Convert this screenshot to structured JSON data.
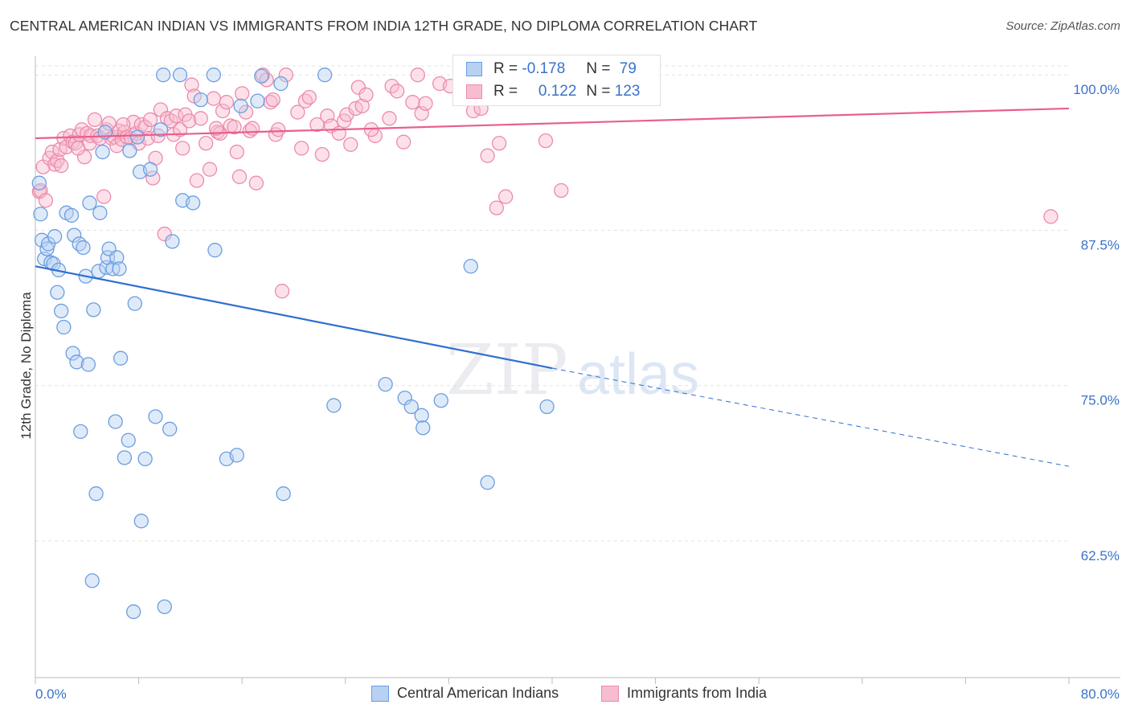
{
  "title": "CENTRAL AMERICAN INDIAN VS IMMIGRANTS FROM INDIA 12TH GRADE, NO DIPLOMA CORRELATION CHART",
  "source": "Source: ZipAtlas.com",
  "watermark": {
    "zip": "ZIP",
    "atlas": "atlas"
  },
  "legend": {
    "rows": [
      {
        "r_label": "R =",
        "r_value": "-0.178",
        "n_label": "N =",
        "n_value": "79"
      },
      {
        "r_label": "R =",
        "r_value": "0.122",
        "n_label": "N =",
        "n_value": "123"
      }
    ]
  },
  "colors": {
    "blue_fill": "#b8d0f2",
    "blue_stroke": "#6b9ee0",
    "blue_line": "#2f6fd0",
    "pink_fill": "#f8bcd0",
    "pink_stroke": "#ec8bab",
    "pink_line": "#e8608a",
    "axis_label": "#3a72c9",
    "grid": "#e3e3e3"
  },
  "chart_data": {
    "type": "scatter",
    "title": "CENTRAL AMERICAN INDIAN VS IMMIGRANTS FROM INDIA 12TH GRADE, NO DIPLOMA CORRELATION CHART",
    "xlabel": "",
    "ylabel": "12th Grade, No Diploma",
    "xlim": [
      0,
      80
    ],
    "ylim": [
      51.5,
      101.5
    ],
    "x_tick_labels": [
      "0.0%",
      "80.0%"
    ],
    "y_ticks": [
      62.5,
      75.0,
      87.5,
      100.0
    ],
    "y_tick_labels": [
      "62.5%",
      "75.0%",
      "87.5%",
      "100.0%"
    ],
    "grid": true,
    "legend_position": "bottom-center",
    "series": [
      {
        "name": "Central American Indians",
        "r": -0.178,
        "n": 79,
        "trend": {
          "x0": 0,
          "y0": 84.6,
          "x1": 40,
          "y1": 76.4,
          "dash_x1": 80,
          "dash_y1": 68.5
        },
        "points": [
          [
            0.3,
            91.3
          ],
          [
            0.4,
            88.8
          ],
          [
            0.5,
            86.7
          ],
          [
            0.7,
            85.2
          ],
          [
            0.9,
            86.0
          ],
          [
            1.0,
            86.4
          ],
          [
            1.2,
            84.9
          ],
          [
            1.4,
            84.8
          ],
          [
            1.5,
            87.0
          ],
          [
            1.7,
            82.5
          ],
          [
            1.8,
            84.3
          ],
          [
            2.0,
            81.0
          ],
          [
            2.2,
            79.7
          ],
          [
            2.4,
            88.9
          ],
          [
            2.8,
            88.7
          ],
          [
            2.9,
            77.6
          ],
          [
            3.0,
            87.1
          ],
          [
            3.2,
            76.9
          ],
          [
            3.4,
            86.4
          ],
          [
            3.5,
            71.3
          ],
          [
            3.7,
            86.1
          ],
          [
            3.9,
            83.8
          ],
          [
            4.1,
            76.7
          ],
          [
            4.2,
            89.7
          ],
          [
            4.5,
            81.1
          ],
          [
            4.7,
            66.3
          ],
          [
            4.9,
            84.2
          ],
          [
            5.0,
            88.9
          ],
          [
            5.2,
            93.8
          ],
          [
            5.4,
            95.4
          ],
          [
            5.5,
            84.5
          ],
          [
            5.6,
            85.3
          ],
          [
            5.7,
            86.0
          ],
          [
            6.0,
            84.4
          ],
          [
            6.2,
            72.1
          ],
          [
            6.3,
            85.3
          ],
          [
            6.5,
            84.4
          ],
          [
            6.6,
            77.2
          ],
          [
            6.9,
            69.2
          ],
          [
            7.2,
            70.6
          ],
          [
            7.3,
            93.9
          ],
          [
            7.7,
            81.6
          ],
          [
            7.9,
            95.0
          ],
          [
            8.1,
            92.2
          ],
          [
            8.2,
            64.1
          ],
          [
            8.5,
            69.1
          ],
          [
            8.9,
            92.4
          ],
          [
            9.3,
            72.5
          ],
          [
            9.7,
            95.6
          ],
          [
            9.9,
            100.0
          ],
          [
            10.0,
            57.2
          ],
          [
            10.4,
            71.5
          ],
          [
            10.6,
            86.6
          ],
          [
            11.2,
            100.0
          ],
          [
            11.4,
            89.9
          ],
          [
            12.2,
            89.7
          ],
          [
            12.8,
            98.0
          ],
          [
            13.8,
            100.0
          ],
          [
            13.9,
            85.9
          ],
          [
            14.8,
            69.1
          ],
          [
            15.6,
            69.4
          ],
          [
            15.9,
            97.5
          ],
          [
            17.2,
            97.9
          ],
          [
            17.5,
            99.9
          ],
          [
            19.0,
            99.3
          ],
          [
            19.2,
            66.3
          ],
          [
            22.4,
            100.0
          ],
          [
            23.1,
            73.4
          ],
          [
            27.1,
            75.1
          ],
          [
            28.6,
            74.0
          ],
          [
            29.1,
            73.3
          ],
          [
            29.9,
            72.6
          ],
          [
            30.0,
            71.6
          ],
          [
            31.4,
            73.8
          ],
          [
            33.7,
            84.6
          ],
          [
            35.0,
            67.2
          ],
          [
            39.6,
            73.3
          ],
          [
            7.6,
            56.8
          ],
          [
            4.4,
            59.3
          ]
        ]
      },
      {
        "name": "Immigrants from India",
        "r": 0.122,
        "n": 123,
        "trend": {
          "x0": 0,
          "y0": 94.9,
          "x1": 80,
          "y1": 97.3
        },
        "points": [
          [
            0.3,
            90.6
          ],
          [
            0.4,
            90.7
          ],
          [
            0.6,
            92.6
          ],
          [
            0.8,
            89.9
          ],
          [
            1.1,
            93.3
          ],
          [
            1.3,
            93.8
          ],
          [
            1.5,
            92.8
          ],
          [
            1.7,
            93.1
          ],
          [
            1.9,
            94.0
          ],
          [
            2.0,
            92.7
          ],
          [
            2.2,
            94.9
          ],
          [
            2.4,
            94.2
          ],
          [
            2.7,
            95.1
          ],
          [
            2.9,
            94.6
          ],
          [
            3.1,
            94.5
          ],
          [
            3.4,
            95.2
          ],
          [
            3.6,
            95.6
          ],
          [
            3.8,
            93.4
          ],
          [
            4.0,
            95.3
          ],
          [
            4.2,
            94.5
          ],
          [
            4.3,
            95.1
          ],
          [
            4.6,
            96.4
          ],
          [
            4.8,
            95.1
          ],
          [
            5.0,
            94.9
          ],
          [
            5.3,
            90.2
          ],
          [
            5.5,
            95.6
          ],
          [
            5.7,
            96.1
          ],
          [
            5.9,
            94.9
          ],
          [
            6.1,
            95.0
          ],
          [
            6.3,
            94.3
          ],
          [
            6.5,
            95.5
          ],
          [
            6.7,
            94.8
          ],
          [
            6.9,
            95.4
          ],
          [
            7.1,
            95.0
          ],
          [
            7.4,
            94.9
          ],
          [
            7.6,
            96.2
          ],
          [
            7.8,
            95.3
          ],
          [
            8.0,
            94.5
          ],
          [
            8.2,
            96.0
          ],
          [
            8.5,
            95.8
          ],
          [
            8.7,
            94.9
          ],
          [
            8.9,
            96.4
          ],
          [
            9.1,
            91.7
          ],
          [
            9.3,
            93.3
          ],
          [
            9.5,
            95.1
          ],
          [
            9.7,
            97.2
          ],
          [
            10.0,
            87.2
          ],
          [
            10.2,
            96.5
          ],
          [
            10.5,
            96.3
          ],
          [
            10.7,
            95.2
          ],
          [
            10.9,
            96.7
          ],
          [
            11.2,
            95.6
          ],
          [
            11.4,
            94.1
          ],
          [
            11.6,
            96.8
          ],
          [
            11.9,
            96.3
          ],
          [
            12.1,
            99.2
          ],
          [
            12.3,
            98.3
          ],
          [
            12.5,
            91.5
          ],
          [
            12.8,
            96.5
          ],
          [
            13.2,
            94.5
          ],
          [
            13.5,
            92.4
          ],
          [
            13.8,
            98.1
          ],
          [
            14.1,
            95.4
          ],
          [
            14.3,
            95.3
          ],
          [
            14.5,
            97.1
          ],
          [
            14.8,
            97.8
          ],
          [
            15.1,
            95.9
          ],
          [
            15.4,
            95.8
          ],
          [
            15.6,
            93.8
          ],
          [
            15.8,
            91.8
          ],
          [
            16.0,
            98.5
          ],
          [
            16.3,
            97.0
          ],
          [
            16.6,
            95.5
          ],
          [
            16.8,
            95.7
          ],
          [
            17.1,
            91.3
          ],
          [
            17.6,
            100.0
          ],
          [
            17.9,
            99.6
          ],
          [
            18.2,
            97.8
          ],
          [
            18.6,
            95.2
          ],
          [
            18.8,
            95.6
          ],
          [
            19.1,
            82.6
          ],
          [
            19.4,
            100.0
          ],
          [
            20.3,
            97.0
          ],
          [
            20.6,
            94.1
          ],
          [
            20.9,
            97.9
          ],
          [
            21.2,
            98.2
          ],
          [
            21.8,
            96.0
          ],
          [
            22.2,
            93.6
          ],
          [
            22.6,
            96.7
          ],
          [
            22.9,
            95.9
          ],
          [
            23.5,
            95.3
          ],
          [
            23.9,
            96.3
          ],
          [
            24.1,
            96.8
          ],
          [
            24.4,
            94.4
          ],
          [
            24.8,
            97.3
          ],
          [
            25.0,
            99.0
          ],
          [
            25.3,
            97.5
          ],
          [
            25.6,
            98.4
          ],
          [
            26.3,
            95.1
          ],
          [
            27.4,
            96.5
          ],
          [
            27.6,
            99.1
          ],
          [
            28.0,
            98.7
          ],
          [
            28.5,
            94.6
          ],
          [
            29.2,
            97.8
          ],
          [
            29.6,
            100.0
          ],
          [
            29.9,
            96.9
          ],
          [
            30.2,
            97.7
          ],
          [
            31.3,
            99.3
          ],
          [
            32.1,
            99.1
          ],
          [
            33.9,
            97.1
          ],
          [
            34.5,
            97.3
          ],
          [
            35.0,
            93.5
          ],
          [
            35.7,
            89.3
          ],
          [
            35.9,
            94.5
          ],
          [
            36.4,
            90.2
          ],
          [
            39.5,
            94.7
          ],
          [
            40.7,
            90.7
          ],
          [
            78.6,
            88.6
          ],
          [
            3.3,
            94.1
          ],
          [
            6.8,
            96.0
          ],
          [
            14.0,
            95.7
          ],
          [
            18.4,
            98.0
          ],
          [
            26.0,
            95.6
          ]
        ]
      }
    ]
  }
}
